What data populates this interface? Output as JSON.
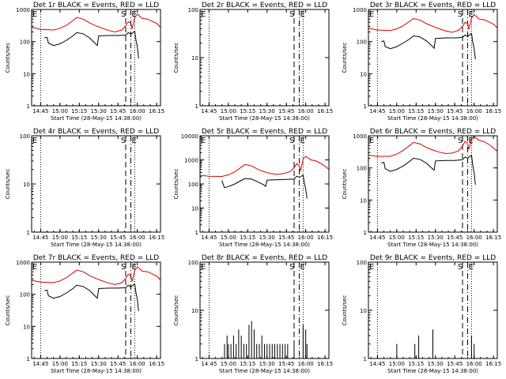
{
  "figure": {
    "xlabel": "Start Time (28-May-15 14:38:00)",
    "ylabel": "Counts/sec",
    "colors": {
      "events": "#000000",
      "lld": "#d40000",
      "axes": "#000000",
      "background": "#ffffff"
    }
  },
  "chart_data": [
    {
      "type": "line",
      "title": "Det 1r BLACK = Events, RED = LLD",
      "xlabel": "Start Time (28-May-15 14:38:00)",
      "ylabel": "Counts/sec",
      "xtick_labels": [
        "14:45",
        "15:00",
        "15:15",
        "15:30",
        "15:45",
        "16:00",
        "16:15"
      ],
      "xlim": [
        "14:38",
        "16:18"
      ],
      "ylim": [
        1,
        1000
      ],
      "yscale": "log",
      "ytick_labels": [
        "1",
        "10",
        "100",
        "1000"
      ],
      "markers": {
        "E_dotted": [
          "14:45",
          "15:58"
        ],
        "S_dashed": "15:51",
        "E_dashed": "15:55"
      },
      "series": [
        {
          "name": "LLD",
          "color": "#d40000",
          "x": [
            "14:38",
            "14:45",
            "14:55",
            "15:00",
            "15:05",
            "15:10",
            "15:13",
            "15:18",
            "15:23",
            "15:28",
            "15:33",
            "15:38",
            "15:43",
            "15:48",
            "15:51",
            "15:53",
            "15:55",
            "15:56",
            "15:58",
            "16:00",
            "16:04",
            "16:08",
            "16:12",
            "16:15",
            "16:18"
          ],
          "y": [
            280,
            240,
            230,
            260,
            320,
            450,
            560,
            500,
            380,
            310,
            260,
            220,
            200,
            230,
            310,
            420,
            370,
            250,
            560,
            720,
            520,
            500,
            420,
            370,
            280
          ]
        },
        {
          "name": "Events",
          "color": "#000000",
          "x": [
            "14:48",
            "14:50",
            "14:51",
            "14:55",
            "15:00",
            "15:05",
            "15:10",
            "15:13",
            "15:18",
            "15:23",
            "15:27",
            "15:29",
            "15:30",
            "15:38",
            "15:45",
            "15:51",
            "15:53",
            "15:55",
            "15:58",
            "15:59",
            "16:00",
            "16:01"
          ],
          "y": [
            130,
            135,
            90,
            75,
            85,
            110,
            150,
            190,
            175,
            130,
            90,
            75,
            150,
            155,
            155,
            160,
            190,
            170,
            210,
            110,
            70,
            30
          ]
        }
      ]
    },
    {
      "type": "line",
      "title": "Det 2r BLACK = Events, RED = LLD",
      "xlabel": "Start Time (28-May-15 14:38:00)",
      "ylabel": "Counts/sec",
      "xtick_labels": [
        "14:45",
        "15:00",
        "15:15",
        "15:30",
        "15:45",
        "16:00",
        "16:15"
      ],
      "xlim": [
        "14:38",
        "16:18"
      ],
      "ylim": [
        1,
        100
      ],
      "yscale": "log",
      "ytick_labels": [
        "1",
        "10",
        "100"
      ],
      "markers": {
        "E_dotted": [
          "14:45",
          "15:58"
        ],
        "S_dashed": "15:51",
        "E_dashed": "15:55"
      },
      "series": []
    },
    {
      "type": "line",
      "title": "Det 3r BLACK = Events, RED = LLD",
      "xlabel": "Start Time (28-May-15 14:38:00)",
      "ylabel": "Counts/sec",
      "xtick_labels": [
        "14:45",
        "15:00",
        "15:15",
        "15:30",
        "15:45",
        "16:00",
        "16:15"
      ],
      "xlim": [
        "14:38",
        "16:18"
      ],
      "ylim": [
        1,
        1000
      ],
      "yscale": "log",
      "ytick_labels": [
        "1",
        "10",
        "100",
        "1000"
      ],
      "markers": {
        "E_dotted": [
          "14:45",
          "15:58"
        ],
        "S_dashed": "15:51",
        "E_dashed": "15:55"
      },
      "series": [
        {
          "name": "LLD",
          "color": "#d40000",
          "x": [
            "14:38",
            "14:45",
            "14:55",
            "15:00",
            "15:05",
            "15:10",
            "15:13",
            "15:18",
            "15:23",
            "15:28",
            "15:33",
            "15:38",
            "15:43",
            "15:48",
            "15:51",
            "15:53",
            "15:55",
            "15:56",
            "15:58",
            "16:00",
            "16:04",
            "16:08",
            "16:12",
            "16:15",
            "16:18"
          ],
          "y": [
            260,
            230,
            220,
            250,
            310,
            430,
            520,
            470,
            360,
            300,
            250,
            215,
            195,
            225,
            300,
            400,
            360,
            240,
            540,
            700,
            500,
            480,
            400,
            350,
            270
          ]
        },
        {
          "name": "Events",
          "color": "#000000",
          "x": [
            "14:48",
            "14:50",
            "14:51",
            "14:55",
            "15:00",
            "15:05",
            "15:10",
            "15:13",
            "15:18",
            "15:23",
            "15:27",
            "15:29",
            "15:30",
            "15:38",
            "15:45",
            "15:51",
            "15:53",
            "15:55",
            "15:58",
            "15:59",
            "16:00",
            "16:01"
          ],
          "y": [
            100,
            105,
            70,
            60,
            70,
            90,
            120,
            150,
            140,
            105,
            75,
            62,
            125,
            130,
            130,
            135,
            160,
            145,
            180,
            95,
            60,
            28
          ]
        }
      ]
    },
    {
      "type": "line",
      "title": "Det 4r BLACK = Events, RED = LLD",
      "xlabel": "Start Time (28-May-15 14:38:00)",
      "ylabel": "Counts/sec",
      "xtick_labels": [
        "14:45",
        "15:00",
        "15:15",
        "15:30",
        "15:45",
        "16:00",
        "16:15"
      ],
      "xlim": [
        "14:38",
        "16:18"
      ],
      "ylim": [
        1,
        100
      ],
      "yscale": "log",
      "ytick_labels": [
        "1",
        "10",
        "100"
      ],
      "markers": {
        "E_dotted": [
          "14:45",
          "15:58"
        ],
        "S_dashed": "15:51",
        "E_dashed": "15:55"
      },
      "series": []
    },
    {
      "type": "line",
      "title": "Det 5r BLACK = Events, RED = LLD",
      "xlabel": "Start Time (28-May-15 14:38:00)",
      "ylabel": "Counts/sec",
      "xtick_labels": [
        "14:45",
        "15:00",
        "15:15",
        "15:30",
        "15:45",
        "16:00",
        "16:15"
      ],
      "xlim": [
        "14:38",
        "16:18"
      ],
      "ylim": [
        1,
        10000
      ],
      "yscale": "log",
      "ytick_labels": [
        "1",
        "10",
        "100",
        "1000",
        "10000"
      ],
      "markers": {
        "E_dotted": [
          "14:45",
          "15:58"
        ],
        "S_dashed": "15:51",
        "E_dashed": "15:55"
      },
      "series": [
        {
          "name": "LLD",
          "color": "#d40000",
          "x": [
            "14:38",
            "14:45",
            "14:55",
            "15:00",
            "15:05",
            "15:10",
            "15:13",
            "15:18",
            "15:23",
            "15:28",
            "15:33",
            "15:38",
            "15:43",
            "15:48",
            "15:51",
            "15:53",
            "15:55",
            "15:56",
            "15:58",
            "16:00",
            "16:04",
            "16:08",
            "16:12",
            "16:15",
            "16:18"
          ],
          "y": [
            230,
            210,
            205,
            240,
            320,
            500,
            650,
            560,
            400,
            320,
            270,
            250,
            270,
            330,
            470,
            700,
            560,
            350,
            1100,
            1400,
            1000,
            900,
            700,
            550,
            400
          ]
        },
        {
          "name": "Events",
          "color": "#000000",
          "x": [
            "14:55",
            "14:56",
            "14:57",
            "15:00",
            "15:05",
            "15:10",
            "15:13",
            "15:18",
            "15:23",
            "15:27",
            "15:29",
            "15:30",
            "15:38",
            "15:45",
            "15:51",
            "15:53",
            "15:55",
            "15:58",
            "15:59",
            "16:00",
            "16:01"
          ],
          "y": [
            140,
            95,
            70,
            78,
            100,
            140,
            170,
            160,
            120,
            95,
            80,
            145,
            150,
            155,
            160,
            210,
            190,
            230,
            110,
            60,
            25
          ]
        }
      ]
    },
    {
      "type": "line",
      "title": "Det 6r BLACK = Events, RED = LLD",
      "xlabel": "Start Time (28-May-15 14:38:00)",
      "ylabel": "Counts/sec",
      "xtick_labels": [
        "14:45",
        "15:00",
        "15:15",
        "15:30",
        "15:45",
        "16:00",
        "16:15"
      ],
      "xlim": [
        "14:38",
        "16:18"
      ],
      "ylim": [
        1,
        1000
      ],
      "yscale": "log",
      "ytick_labels": [
        "1",
        "10",
        "100",
        "1000"
      ],
      "markers": {
        "E_dotted": [
          "14:45",
          "15:58"
        ],
        "S_dashed": "15:51",
        "E_dashed": "15:55"
      },
      "series": [
        {
          "name": "LLD",
          "color": "#d40000",
          "x": [
            "14:38",
            "14:45",
            "14:55",
            "15:00",
            "15:05",
            "15:10",
            "15:13",
            "15:18",
            "15:23",
            "15:28",
            "15:33",
            "15:38",
            "15:43",
            "15:48",
            "15:51",
            "15:53",
            "15:55",
            "15:56",
            "15:58",
            "16:00",
            "16:04",
            "16:08",
            "16:12",
            "16:15",
            "16:18"
          ],
          "y": [
            250,
            230,
            230,
            270,
            350,
            500,
            620,
            560,
            430,
            360,
            310,
            280,
            290,
            340,
            480,
            680,
            560,
            380,
            800,
            950,
            720,
            650,
            520,
            420,
            330
          ]
        },
        {
          "name": "Events",
          "color": "#000000",
          "x": [
            "14:48",
            "14:50",
            "14:51",
            "14:55",
            "15:00",
            "15:05",
            "15:10",
            "15:13",
            "15:18",
            "15:23",
            "15:27",
            "15:29",
            "15:30",
            "15:38",
            "15:45",
            "15:51",
            "15:53",
            "15:55",
            "15:58",
            "15:59",
            "16:00",
            "16:01"
          ],
          "y": [
            140,
            150,
            95,
            78,
            90,
            115,
            160,
            200,
            185,
            140,
            100,
            85,
            165,
            170,
            170,
            180,
            220,
            200,
            250,
            120,
            70,
            30
          ]
        }
      ]
    },
    {
      "type": "line",
      "title": "Det 7r BLACK = Events, RED = LLD",
      "xlabel": "Start Time (28-May-15 14:38:00)",
      "ylabel": "Counts/sec",
      "xtick_labels": [
        "14:45",
        "15:00",
        "15:15",
        "15:30",
        "15:45",
        "16:00",
        "16:15"
      ],
      "xlim": [
        "14:38",
        "16:18"
      ],
      "ylim": [
        1,
        1000
      ],
      "yscale": "log",
      "ytick_labels": [
        "1",
        "10",
        "100",
        "1000"
      ],
      "markers": {
        "E_dotted": [
          "14:45",
          "15:58"
        ],
        "S_dashed": "15:51",
        "E_dashed": "15:55"
      },
      "series": [
        {
          "name": "LLD",
          "color": "#d40000",
          "x": [
            "14:38",
            "14:45",
            "14:55",
            "15:00",
            "15:05",
            "15:10",
            "15:13",
            "15:18",
            "15:23",
            "15:28",
            "15:33",
            "15:38",
            "15:43",
            "15:48",
            "15:51",
            "15:53",
            "15:55",
            "15:56",
            "15:58",
            "16:00",
            "16:04",
            "16:08",
            "16:12",
            "16:15",
            "16:18"
          ],
          "y": [
            270,
            240,
            230,
            260,
            330,
            460,
            560,
            500,
            380,
            310,
            260,
            220,
            200,
            230,
            310,
            420,
            370,
            250,
            560,
            720,
            520,
            500,
            420,
            370,
            280
          ]
        },
        {
          "name": "Events",
          "color": "#000000",
          "x": [
            "14:48",
            "14:50",
            "14:51",
            "14:55",
            "15:00",
            "15:05",
            "15:10",
            "15:13",
            "15:18",
            "15:23",
            "15:27",
            "15:29",
            "15:30",
            "15:38",
            "15:45",
            "15:51",
            "15:53",
            "15:55",
            "15:58",
            "15:59",
            "16:00",
            "16:01"
          ],
          "y": [
            130,
            135,
            90,
            75,
            85,
            110,
            150,
            190,
            175,
            130,
            90,
            75,
            150,
            155,
            155,
            160,
            190,
            170,
            210,
            110,
            70,
            30
          ]
        }
      ]
    },
    {
      "type": "line",
      "title": "Det 8r BLACK = Events, RED = LLD",
      "xlabel": "Start Time (28-May-15 14:38:00)",
      "ylabel": "Counts/sec",
      "xtick_labels": [
        "14:45",
        "15:00",
        "15:15",
        "15:30",
        "15:45",
        "16:00",
        "16:15"
      ],
      "xlim": [
        "14:38",
        "16:18"
      ],
      "ylim": [
        1,
        100
      ],
      "yscale": "log",
      "ytick_labels": [
        "1",
        "10",
        "100"
      ],
      "markers": {
        "E_dotted": [
          "14:45",
          "15:58"
        ],
        "S_dashed": "15:51",
        "E_dashed": "15:55"
      },
      "series": [
        {
          "name": "Events",
          "color": "#000000",
          "style": "spikes",
          "x": [
            "14:57",
            "14:59",
            "15:00",
            "15:02",
            "15:04",
            "15:06",
            "15:08",
            "15:10",
            "15:12",
            "15:14",
            "15:16",
            "15:18",
            "15:20",
            "15:22",
            "15:24",
            "15:26",
            "15:28",
            "15:30",
            "15:32",
            "15:34",
            "15:36",
            "15:38",
            "15:40",
            "15:42",
            "15:44",
            "15:46",
            "15:51",
            "15:58",
            "16:00",
            "16:01"
          ],
          "y": [
            2,
            3,
            2,
            2,
            3,
            2,
            4,
            3,
            2,
            2,
            5,
            6,
            4,
            2,
            2,
            3,
            2,
            2,
            2,
            2,
            2,
            2,
            2,
            2,
            2,
            2,
            2,
            5,
            4,
            2
          ]
        }
      ]
    },
    {
      "type": "line",
      "title": "Det 9r BLACK = Events, RED = LLD",
      "xlabel": "Start Time (28-May-15 14:38:00)",
      "ylabel": "Counts/sec",
      "xtick_labels": [
        "14:45",
        "15:00",
        "15:15",
        "15:30",
        "15:45",
        "16:00",
        "16:15"
      ],
      "xlim": [
        "14:38",
        "16:18"
      ],
      "ylim": [
        1,
        100
      ],
      "yscale": "log",
      "ytick_labels": [
        "1",
        "10",
        "100"
      ],
      "markers": {
        "E_dotted": [
          "14:45",
          "15:58"
        ],
        "S_dashed": "15:51",
        "E_dashed": "15:55"
      },
      "series": [
        {
          "name": "Events",
          "color": "#000000",
          "style": "spikes",
          "x": [
            "15:00",
            "15:14",
            "15:17",
            "15:28",
            "15:58",
            "16:00"
          ],
          "y": [
            2,
            2,
            3,
            4,
            3,
            2
          ]
        }
      ]
    }
  ]
}
